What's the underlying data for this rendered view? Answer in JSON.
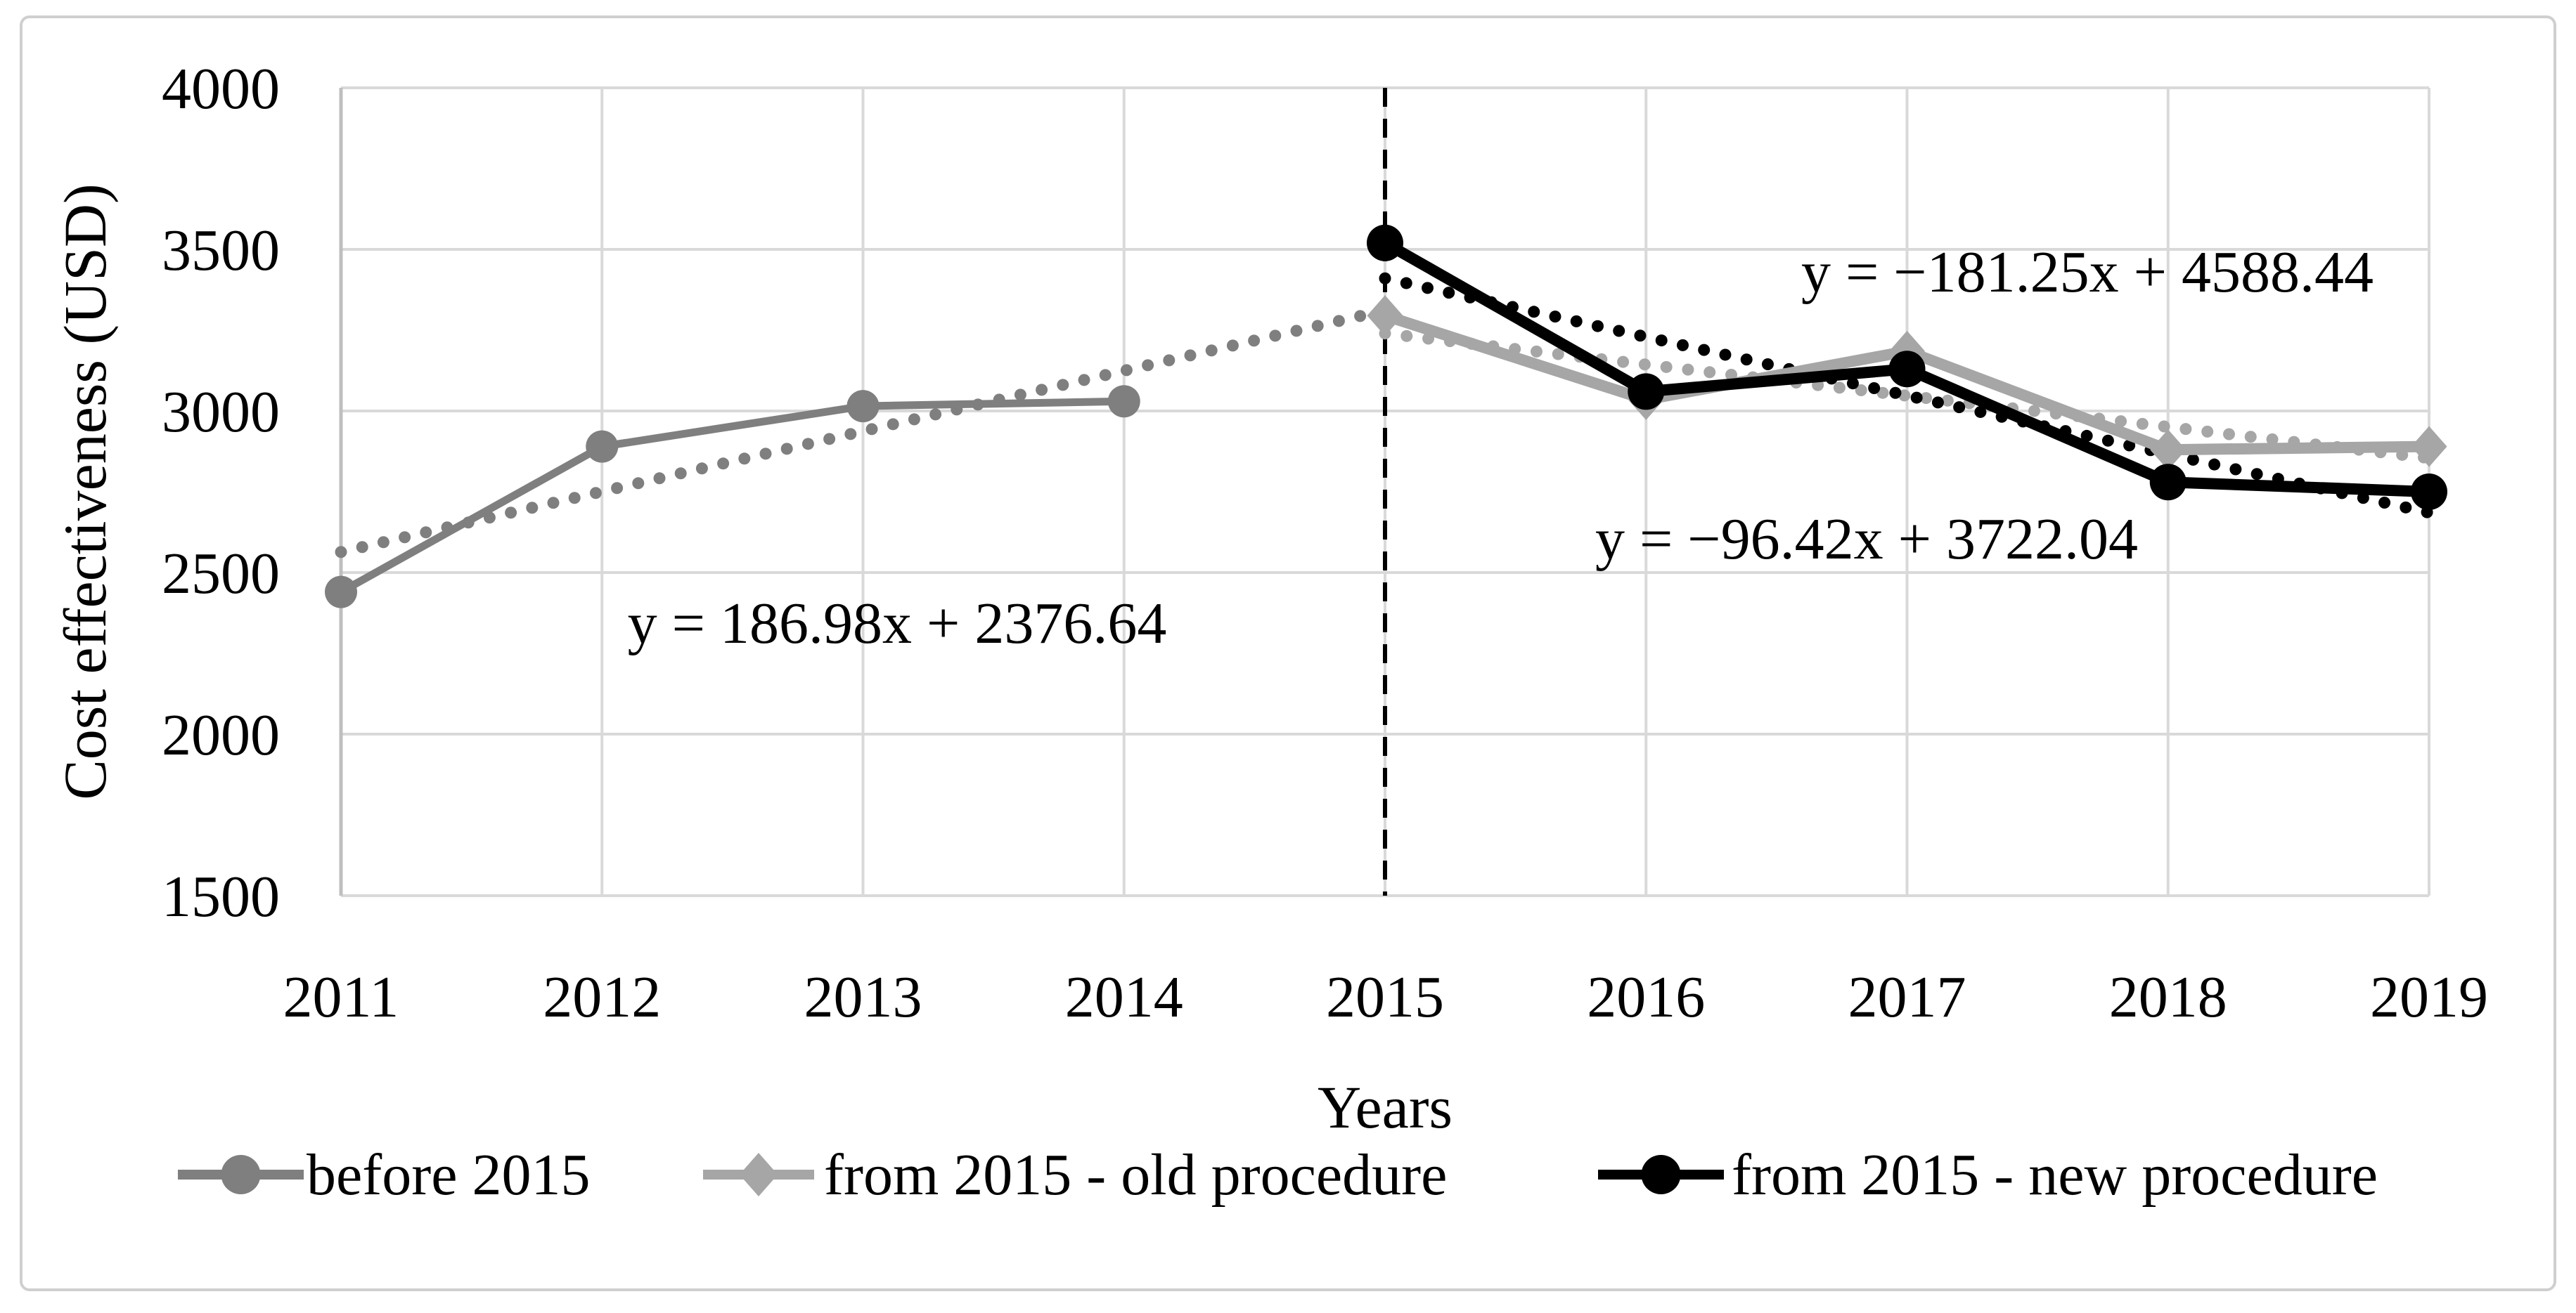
{
  "figure": {
    "background": "#ffffff",
    "border_color": "#cfcfcf",
    "grid_color": "#d9d9d9",
    "axis_color": "#bfbfbf",
    "text_color": "#000000"
  },
  "chart_data": {
    "type": "line",
    "title": "",
    "xlabel": "Years",
    "ylabel": "Cost effectiveness (USD)",
    "x_ticks": [
      2011,
      2012,
      2013,
      2014,
      2015,
      2016,
      2017,
      2018,
      2019
    ],
    "y_ticks": [
      4000,
      3500,
      3000,
      2500,
      2000,
      1500
    ],
    "ylim": [
      1500,
      4000
    ],
    "xlim": [
      2011,
      2019
    ],
    "grid": true,
    "legend_position": "bottom",
    "divider_line": {
      "x": 2015,
      "style": "dashed",
      "color": "#000000"
    },
    "series": [
      {
        "name": "before 2015",
        "color": "#7f7f7f",
        "marker": "circle",
        "x": [
          2011,
          2012,
          2013,
          2014
        ],
        "values": [
          2440,
          2890,
          3015,
          3030
        ]
      },
      {
        "name": "from 2015 - old procedure",
        "color": "#a6a6a6",
        "marker": "diamond",
        "x": [
          2015,
          2016,
          2017,
          2018,
          2019
        ],
        "values": [
          3295,
          3035,
          3185,
          2880,
          2890
        ]
      },
      {
        "name": "from 2015 - new procedure",
        "color": "#000000",
        "marker": "circle",
        "x": [
          2015,
          2016,
          2017,
          2018,
          2019
        ],
        "values": [
          3520,
          3060,
          3130,
          2780,
          2750
        ]
      }
    ],
    "trendlines": [
      {
        "series": "before 2015",
        "equation": "y = 186.98x + 2376.64",
        "color": "#7f7f7f",
        "x": [
          2011,
          2015
        ],
        "y": [
          2563.6,
          3311.5
        ]
      },
      {
        "series": "from 2015 - old procedure",
        "equation": "y = −96.42x + 3722.04",
        "color": "#a6a6a6",
        "x": [
          2015,
          2019
        ],
        "y": [
          3239.9,
          2854.3
        ]
      },
      {
        "series": "from 2015 - new procedure",
        "equation": "y = −181.25x + 4588.44",
        "color": "#000000",
        "x": [
          2015,
          2019
        ],
        "y": [
          3410.3,
          2685.3
        ]
      }
    ],
    "equation_labels": [
      {
        "text": "y = 186.98x + 2376.64",
        "color": "#000000"
      },
      {
        "text": "y = −181.25x + 4588.44",
        "color": "#000000"
      },
      {
        "text": "y = −96.42x + 3722.04",
        "color": "#000000"
      }
    ],
    "legend": [
      {
        "label": "before 2015",
        "color": "#7f7f7f",
        "marker": "circle"
      },
      {
        "label": "from 2015 - old procedure",
        "color": "#a6a6a6",
        "marker": "diamond"
      },
      {
        "label": "from 2015 - new procedure",
        "color": "#000000",
        "marker": "circle"
      }
    ]
  }
}
